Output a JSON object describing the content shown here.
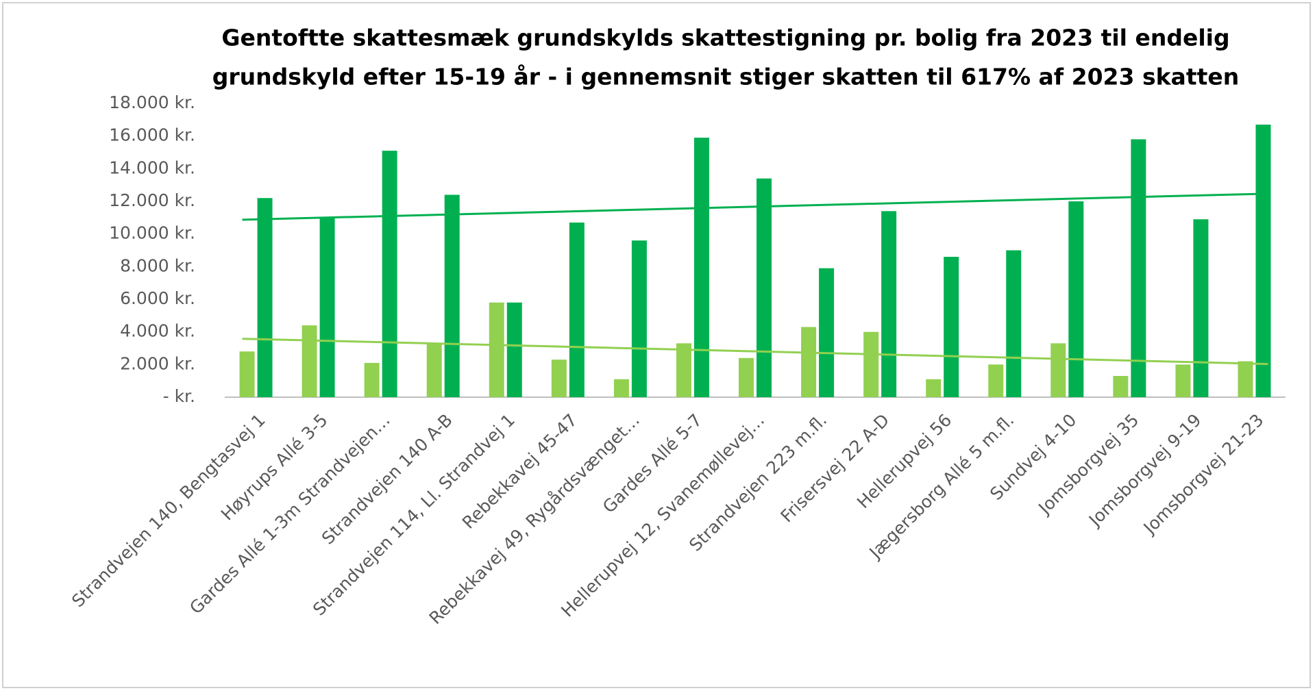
{
  "chart_data": {
    "type": "bar",
    "title": [
      "Gentoftte skattesmæk grundskylds skattestigning pr. bolig  fra 2023 til endelig",
      "grundskyld efter 15-19 år - i gennemsnit stiger skatten til 617% af 2023 skatten"
    ],
    "categories": [
      "Strandvejen 140, Bengtasvej 1",
      "Høyrups Allé 3-5",
      "Gardes Allé 1-3m Strandvejen…",
      "Strandvejen 140 A-B",
      "Strandvejen 114, Ll. Strandvej 1",
      "Rebekkavej 45-47",
      "Rebekkavej 49, Rygårdsvænget…",
      "Gardes Allé 5-7",
      "Hellerupvej 12, Svanemøllevej…",
      "Strandvejen 223 m.fl.",
      "Frisersvej 22 A-D",
      "Hellerupvej 56",
      "Jægersborg Allé 5 m.fl.",
      "Sundvej 4-10",
      "Jomsborgvej 35",
      "Jomsborgvej 9-19",
      "Jomsborgvej 21-23"
    ],
    "series": [
      {
        "color": "#92d050",
        "values": [
          2800,
          4400,
          2100,
          3300,
          5800,
          2300,
          1100,
          3300,
          2400,
          4300,
          4000,
          1100,
          2000,
          3300,
          1300,
          2000,
          2200
        ]
      },
      {
        "color": "#00b050",
        "values": [
          12200,
          11000,
          15100,
          12400,
          5800,
          10700,
          9600,
          15900,
          13400,
          7900,
          11400,
          8600,
          9000,
          12000,
          15800,
          10900,
          16700
        ]
      }
    ],
    "trendline": true,
    "ylim": [
      0,
      18000
    ],
    "yticks": [
      {
        "value": 0,
        "label": "- kr."
      },
      {
        "value": 2000,
        "label": "2.000 kr."
      },
      {
        "value": 4000,
        "label": "4.000 kr."
      },
      {
        "value": 6000,
        "label": "6.000 kr."
      },
      {
        "value": 8000,
        "label": "8.000 kr."
      },
      {
        "value": 10000,
        "label": "10.000 kr."
      },
      {
        "value": 12000,
        "label": "12.000 kr."
      },
      {
        "value": 14000,
        "label": "14.000 kr."
      },
      {
        "value": 16000,
        "label": "16.000 kr."
      },
      {
        "value": 18000,
        "label": "18.000 kr."
      }
    ],
    "grid": false
  }
}
